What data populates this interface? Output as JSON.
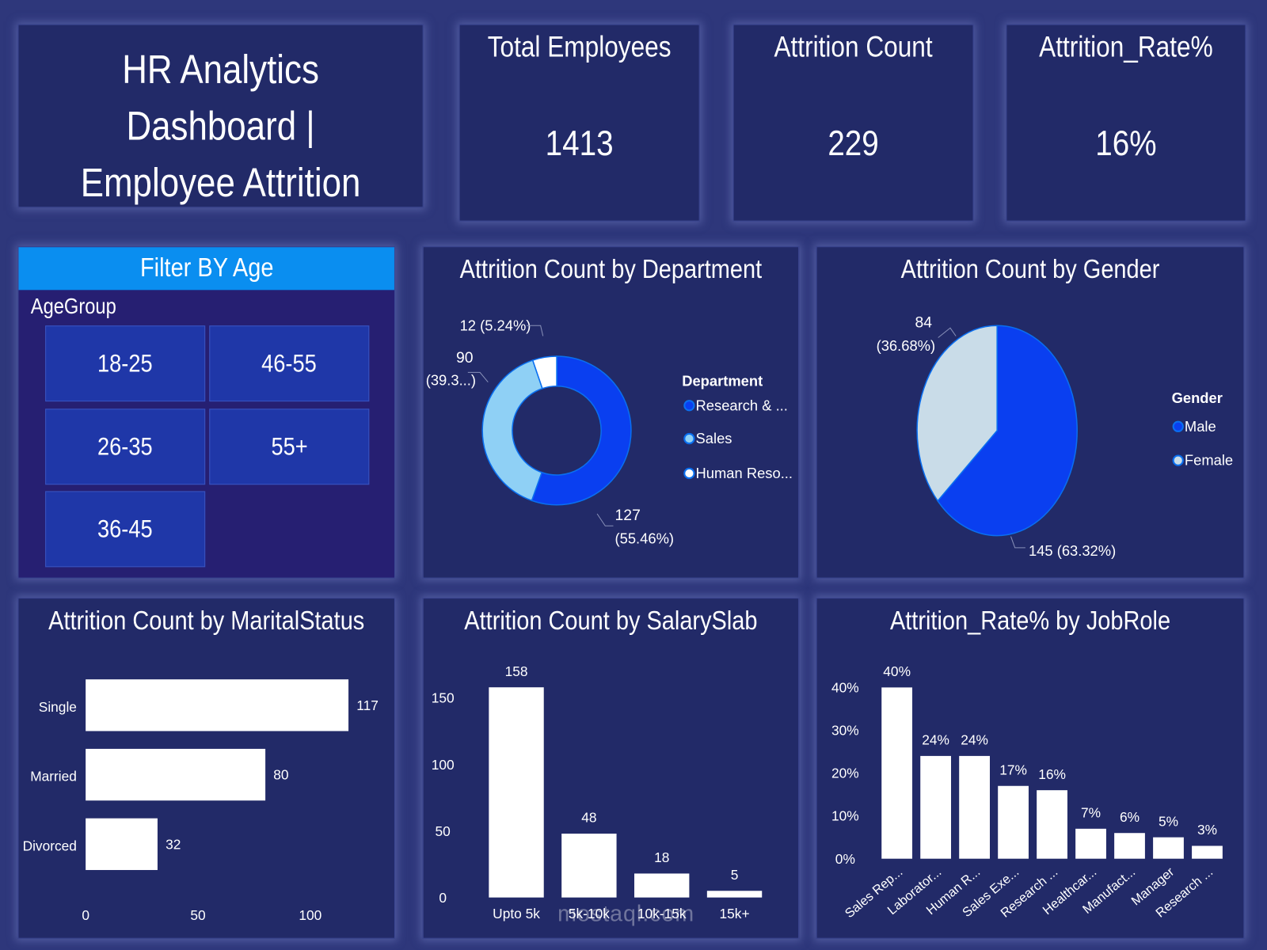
{
  "title": "HR Analytics Dashboard | Employee Attrition",
  "title_lines": [
    "HR Analytics Dashboard |",
    "Employee Attrition"
  ],
  "kpis": [
    {
      "label": "Total Employees",
      "value": "1413"
    },
    {
      "label": "Attrition Count",
      "value": "229"
    },
    {
      "label": "Attrition_Rate%",
      "value": "16%"
    }
  ],
  "filter": {
    "header": "Filter BY Age",
    "field": "AgeGroup",
    "options": [
      "18-25",
      "46-55",
      "26-35",
      "55+",
      "36-45"
    ]
  },
  "watermark": "mostaql.com",
  "colors": {
    "background": "#2e377b",
    "panel": "#222a68",
    "accent": "#0a8ef0",
    "primary_blue": "#0a3ff0",
    "light_blue": "#8fd0f5",
    "female": "#c9dce8"
  },
  "chart_data": [
    {
      "type": "pie",
      "variant": "donut",
      "title": "Attrition Count by Department",
      "legend_title": "Department",
      "legend_position": "right",
      "categories": [
        "Research & ...",
        "Sales",
        "Human Reso..."
      ],
      "values": [
        127,
        90,
        12
      ],
      "data_labels": [
        "127 (55.46%)",
        "90 (39.3...)",
        "12 (5.24%)"
      ],
      "colors": [
        "#0a3ff0",
        "#8fd0f5",
        "#ffffff"
      ]
    },
    {
      "type": "pie",
      "title": "Attrition Count by Gender",
      "legend_title": "Gender",
      "legend_position": "right",
      "categories": [
        "Male",
        "Female"
      ],
      "values": [
        145,
        84
      ],
      "data_labels": [
        "145 (63.32%)",
        "84 (36.68%)"
      ],
      "colors": [
        "#0a3ff0",
        "#c9dce8"
      ]
    },
    {
      "type": "bar",
      "orientation": "horizontal",
      "title": "Attrition Count by MaritalStatus",
      "categories": [
        "Single",
        "Married",
        "Divorced"
      ],
      "values": [
        117,
        80,
        32
      ],
      "xlim": [
        0,
        120
      ],
      "xticks": [
        0,
        50,
        100
      ],
      "grid": false
    },
    {
      "type": "bar",
      "title": "Attrition Count by SalarySlab",
      "categories": [
        "Upto 5k",
        "5k-10k",
        "10k-15k",
        "15k+"
      ],
      "values": [
        158,
        48,
        18,
        5
      ],
      "ylim": [
        0,
        160
      ],
      "yticks": [
        0,
        50,
        100,
        150
      ],
      "grid": false
    },
    {
      "type": "bar",
      "title": "Attrition_Rate% by JobRole",
      "categories": [
        "Sales Rep...",
        "Laborator...",
        "Human R...",
        "Sales Exe...",
        "Research ...",
        "Healthcar...",
        "Manufact...",
        "Manager",
        "Research ..."
      ],
      "values": [
        40,
        24,
        24,
        17,
        16,
        7,
        6,
        5,
        3
      ],
      "ylim": [
        0,
        40
      ],
      "yticks": [
        "0%",
        "10%",
        "20%",
        "30%",
        "40%"
      ],
      "grid": false
    }
  ]
}
